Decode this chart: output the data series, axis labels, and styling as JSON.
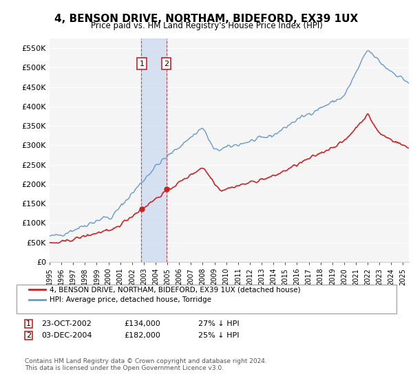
{
  "title": "4, BENSON DRIVE, NORTHAM, BIDEFORD, EX39 1UX",
  "subtitle": "Price paid vs. HM Land Registry's House Price Index (HPI)",
  "ylabel_ticks": [
    "£0",
    "£50K",
    "£100K",
    "£150K",
    "£200K",
    "£250K",
    "£300K",
    "£350K",
    "£400K",
    "£450K",
    "£500K",
    "£550K"
  ],
  "ytick_values": [
    0,
    50000,
    100000,
    150000,
    200000,
    250000,
    300000,
    350000,
    400000,
    450000,
    500000,
    550000
  ],
  "ylim": [
    0,
    575000
  ],
  "hpi_color": "#6699cc",
  "price_color": "#cc2222",
  "transaction1_date": "23-OCT-2002",
  "transaction1_price": 134000,
  "transaction1_pct": "27% ↓ HPI",
  "transaction2_date": "03-DEC-2004",
  "transaction2_price": 182000,
  "transaction2_pct": "25% ↓ HPI",
  "legend_label1": "4, BENSON DRIVE, NORTHAM, BIDEFORD, EX39 1UX (detached house)",
  "legend_label2": "HPI: Average price, detached house, Torridge",
  "footnote": "Contains HM Land Registry data © Crown copyright and database right 2024.\nThis data is licensed under the Open Government Licence v3.0.",
  "background_color": "#ffffff",
  "plot_bg_color": "#f5f5f5"
}
